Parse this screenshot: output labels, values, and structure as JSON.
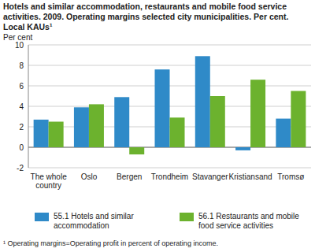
{
  "chart_data": {
    "type": "bar",
    "title": "Hotels and similar accommodation, restaurants and mobile food service activities. 2009. Operating margins selected city municipalities. Per cent. Local KAUs¹",
    "y_label": "Per cent",
    "footnote": "¹ Operating margins=Operating profit in percent of operating income.",
    "categories": [
      "The whole country",
      "Oslo",
      "Bergen",
      "Trondheim",
      "Stavanger",
      "Kristiansand",
      "Tromsø"
    ],
    "series": [
      {
        "name": "55.1 Hotels and similar accommodation",
        "color": "#2f8ac8",
        "values": [
          2.7,
          3.9,
          4.9,
          7.6,
          8.9,
          -0.3,
          2.8
        ]
      },
      {
        "name": "56.1 Restaurants and mobile food service activities",
        "color": "#6cb22e",
        "values": [
          2.5,
          4.2,
          -0.7,
          2.9,
          5.0,
          6.6,
          5.5
        ]
      }
    ],
    "ylim": [
      -2,
      10
    ],
    "yticks": [
      -2,
      0,
      2,
      4,
      6,
      8,
      10
    ],
    "grid": true,
    "legend": "bottom"
  }
}
